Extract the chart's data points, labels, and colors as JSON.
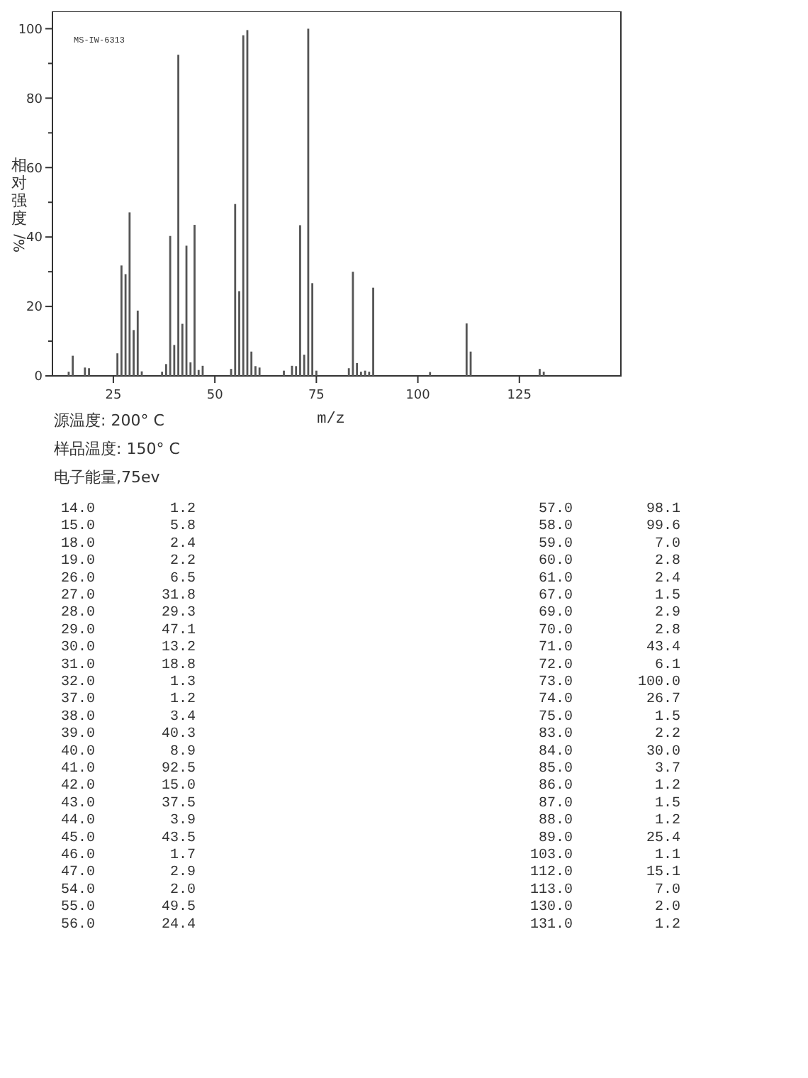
{
  "chart_data": {
    "type": "bar",
    "xlabel": "m/z",
    "ylabel": "相对强度%/",
    "annotations": [
      "MS-IW-6313",
      "源温度: 200° C",
      "样品温度: 150° C",
      "电子能量,75ev",
      "14.0 1.2",
      "15.0 5.8",
      "18.0 2.4",
      "19.0 2.2",
      "26.0 6.5",
      "27.0 31.8",
      "28.0 29.3",
      "29.0 47.1",
      "30.0 13.2",
      "31.0 18.8",
      "32.0 1.3",
      "37.0 1.2",
      "38.0 3.4",
      "39.0 40.3",
      "40.0 8.9",
      "41.0 92.5",
      "42.0 15.0",
      "43.0 37.5",
      "44.0 3.9",
      "45.0 43.5",
      "46.0 1.7",
      "47.0 2.9",
      "54.0 2.0",
      "55.0 49.5",
      "56.0 24.4",
      "57.0 98.1",
      "58.0 99.6",
      "59.0 7.0",
      "60.0 2.8",
      "61.0 2.4",
      "67.0 1.5",
      "69.0 2.9",
      "70.0 2.8",
      "71.0 43.4",
      "72.0 6.1",
      "73.0 100.0",
      "74.0 26.7",
      "75.0 1.5",
      "83.0 2.2",
      "84.0 30.0",
      "85.0 3.7",
      "86.0 1.2",
      "87.0 1.5",
      "88.0 1.2",
      "89.0 25.4",
      "103.0 1.1",
      "112.0 15.1",
      "113.0 7.0",
      "130.0 2.0",
      "131.0 1.2"
    ],
    "x": [
      14,
      15,
      18,
      19,
      26,
      27,
      28,
      29,
      30,
      31,
      32,
      37,
      38,
      39,
      40,
      41,
      42,
      43,
      44,
      45,
      46,
      47,
      54,
      55,
      56,
      57,
      58,
      59,
      60,
      61,
      67,
      69,
      70,
      71,
      72,
      73,
      74,
      75,
      83,
      84,
      85,
      86,
      87,
      88,
      89,
      103,
      112,
      113,
      130,
      131
    ],
    "values": [
      1.2,
      5.8,
      2.4,
      2.2,
      6.5,
      31.8,
      29.3,
      47.1,
      13.2,
      18.8,
      1.3,
      1.2,
      3.4,
      40.3,
      8.9,
      92.5,
      15.0,
      37.5,
      3.9,
      43.5,
      1.7,
      2.9,
      2.0,
      49.5,
      24.4,
      98.1,
      99.6,
      7.0,
      2.8,
      2.4,
      1.5,
      2.9,
      2.8,
      43.4,
      6.1,
      100.0,
      26.7,
      1.5,
      2.2,
      30.0,
      3.7,
      1.2,
      1.5,
      1.2,
      25.4,
      1.1,
      15.1,
      7.0,
      2.0,
      1.2
    ],
    "color": "#555555",
    "xlim": [
      10,
      150
    ],
    "xticks": [
      25,
      50,
      75,
      100,
      125
    ],
    "ylim": [
      0,
      105
    ],
    "yticks": [
      0,
      {
        "value": 10,
        "label": null
      },
      20,
      {
        "value": 30,
        "label": null
      },
      40,
      {
        "value": 50,
        "label": null
      },
      60,
      {
        "value": 70,
        "label": null
      },
      80,
      {
        "value": 90,
        "label": null
      },
      100
    ]
  }
}
